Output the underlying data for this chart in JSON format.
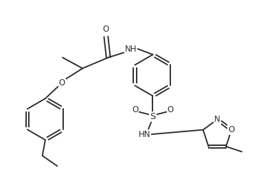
{
  "bg_color": "#ffffff",
  "line_color": "#2d2d2d",
  "line_width": 1.4,
  "font_size": 8.5,
  "figsize": [
    3.99,
    2.63
  ],
  "dpi": 100,
  "xlim": [
    0,
    9.5
  ],
  "ylim": [
    0,
    6.3
  ]
}
